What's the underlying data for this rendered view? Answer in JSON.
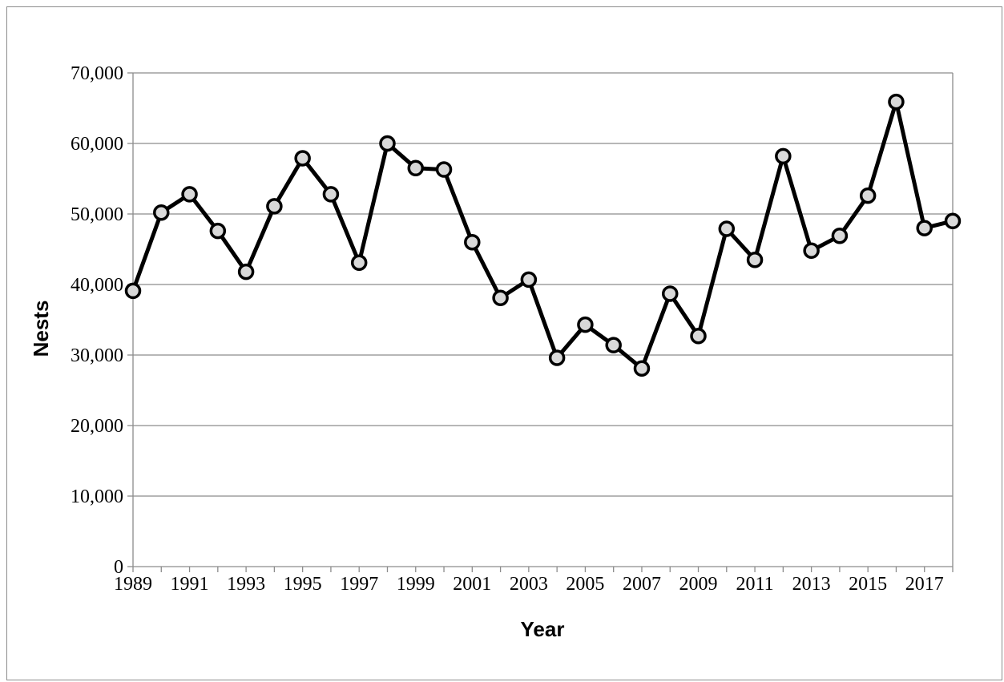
{
  "chart_data": {
    "type": "line",
    "xlabel": "Year",
    "ylabel": "Nests",
    "ylim": [
      0,
      70000
    ],
    "yticks": [
      "0",
      "10,000",
      "20,000",
      "30,000",
      "40,000",
      "50,000",
      "60,000",
      "70,000"
    ],
    "xtick_labels": [
      "1989",
      "1991",
      "1993",
      "1995",
      "1997",
      "1999",
      "2001",
      "2003",
      "2005",
      "2007",
      "2009",
      "2011",
      "2013",
      "2015",
      "2017"
    ],
    "grid": "horizontal",
    "legend": "none",
    "x": [
      1989,
      1990,
      1991,
      1992,
      1993,
      1994,
      1995,
      1996,
      1997,
      1998,
      1999,
      2000,
      2001,
      2002,
      2003,
      2004,
      2005,
      2006,
      2007,
      2008,
      2009,
      2010,
      2011,
      2012,
      2013,
      2014,
      2015,
      2016,
      2017,
      2018
    ],
    "series": [
      {
        "values": [
          39100,
          50200,
          52800,
          47600,
          41800,
          51100,
          57900,
          52800,
          43100,
          60000,
          56500,
          56300,
          46000,
          38100,
          40700,
          29600,
          34300,
          31400,
          28100,
          38700,
          32700,
          47900,
          43500,
          58200,
          44800,
          46900,
          52600,
          65900,
          48000,
          49000
        ],
        "color": "#000000",
        "marker_fill": "#d9d9d9"
      }
    ]
  }
}
